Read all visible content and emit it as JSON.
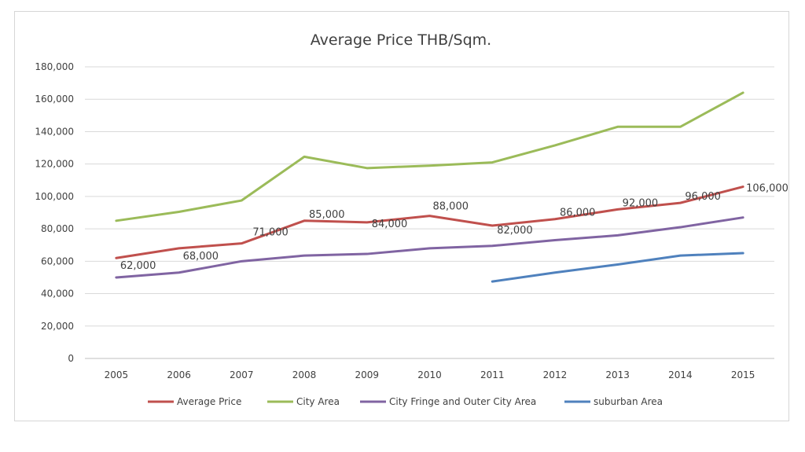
{
  "chart_data": {
    "type": "line",
    "title": "Average Price THB/Sqm.",
    "xlabel": "",
    "ylabel": "",
    "x": [
      "2005",
      "2006",
      "2007",
      "2008",
      "2009",
      "2010",
      "2011",
      "2012",
      "2013",
      "2014",
      "2015"
    ],
    "ylim": [
      0,
      180000
    ],
    "y_ticks": [
      0,
      20000,
      40000,
      60000,
      80000,
      100000,
      120000,
      140000,
      160000,
      180000
    ],
    "y_tick_labels": [
      "0",
      "20,000",
      "40,000",
      "60,000",
      "80,000",
      "100,000",
      "120,000",
      "140,000",
      "160,000",
      "180,000"
    ],
    "grid": true,
    "legend_position": "bottom",
    "series": [
      {
        "name": "Average Price",
        "color": "#c0504d",
        "values": [
          62000,
          68000,
          71000,
          85000,
          84000,
          88000,
          82000,
          86000,
          92000,
          96000,
          106000
        ],
        "data_labels": [
          "62,000",
          "68,000",
          "71,000",
          "85,000",
          "84,000",
          "88,000",
          "82,000",
          "86,000",
          "92,000",
          "96,000",
          "106,000"
        ]
      },
      {
        "name": "City Area",
        "color": "#9bbb59",
        "values": [
          85000,
          90500,
          97500,
          124500,
          117500,
          119000,
          121000,
          131500,
          143000,
          143000,
          164000
        ]
      },
      {
        "name": "City Fringe and Outer City Area",
        "color": "#8064a2",
        "values": [
          50000,
          53000,
          60000,
          63500,
          64500,
          68000,
          69500,
          73000,
          76000,
          81000,
          87000
        ]
      },
      {
        "name": "suburban Area",
        "color": "#4f81bd",
        "values": [
          null,
          null,
          null,
          null,
          null,
          null,
          47500,
          53000,
          58000,
          63500,
          65000
        ]
      }
    ]
  }
}
